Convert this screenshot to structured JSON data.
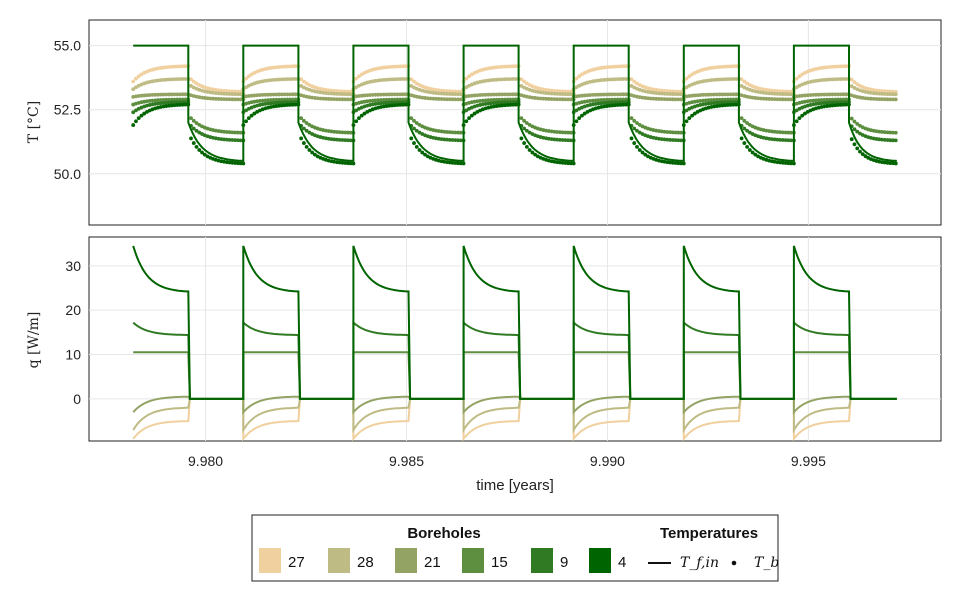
{
  "chart_data": [
    {
      "type": "line",
      "panel": "temperature",
      "ylabel": "T [°C]",
      "xlim": [
        9.9771,
        9.9983
      ],
      "ylim": [
        48.0,
        56.0
      ],
      "xticks": [
        9.98,
        9.985,
        9.99,
        9.995
      ],
      "yticks": [
        {
          "value": 50.0,
          "label": "50.0"
        },
        {
          "value": 52.5,
          "label": "52.5"
        },
        {
          "value": 55.0,
          "label": "55.0"
        }
      ],
      "grid": true,
      "cycles": {
        "first_start": 9.9782,
        "period": 0.00274,
        "on_duration": 0.00137,
        "count": 7,
        "end": 9.9972
      },
      "series_fin": {
        "name": "T_f,in",
        "on_value": 55.0,
        "off_start": 52.0,
        "off_end": 50.5
      },
      "series_tb": [
        {
          "name": "27",
          "on_start": 53.6,
          "on_end": 54.2,
          "off_start": 53.8,
          "off_end": 53.2
        },
        {
          "name": "28",
          "on_start": 53.3,
          "on_end": 53.7,
          "off_start": 53.5,
          "off_end": 53.1
        },
        {
          "name": "21",
          "on_start": 53.0,
          "on_end": 53.1,
          "off_start": 53.1,
          "off_end": 52.9
        },
        {
          "name": "15",
          "on_start": 52.7,
          "on_end": 52.9,
          "off_start": 52.3,
          "off_end": 51.6
        },
        {
          "name": "9",
          "on_start": 52.4,
          "on_end": 52.8,
          "off_start": 52.0,
          "off_end": 51.3
        },
        {
          "name": "4",
          "on_start": 51.9,
          "on_end": 52.7,
          "off_start": 51.6,
          "off_end": 50.4
        }
      ]
    },
    {
      "type": "line",
      "panel": "heat_flux",
      "ylabel": "q [W/m]",
      "xlabel": "time [years]",
      "xlim": [
        9.9771,
        9.9983
      ],
      "ylim": [
        -9.5,
        36.5
      ],
      "xticks": [
        9.98,
        9.985,
        9.99,
        9.995
      ],
      "xticklabels": [
        "9.980",
        "9.985",
        "9.990",
        "9.995"
      ],
      "yticks": [
        {
          "value": 0,
          "label": "0"
        },
        {
          "value": 10,
          "label": "10"
        },
        {
          "value": 20,
          "label": "20"
        },
        {
          "value": 30,
          "label": "30"
        }
      ],
      "grid": true,
      "series": [
        {
          "name": "27",
          "on_start": -9.0,
          "on_end": -5.0
        },
        {
          "name": "28",
          "on_start": -7.0,
          "on_end": -2.0
        },
        {
          "name": "21",
          "on_start": -3.0,
          "on_end": 0.5
        },
        {
          "name": "15",
          "on_start": 10.5,
          "on_end": 10.5
        },
        {
          "name": "9",
          "on_start": 17.2,
          "on_end": 14.4
        },
        {
          "name": "4",
          "on_start": 34.5,
          "on_end": 24.2
        }
      ]
    }
  ],
  "legend": {
    "placement": "bottom-center",
    "boreholes_title": "Boreholes",
    "temperatures_title": "Temperatures",
    "boreholes": [
      {
        "label": "27",
        "color": "#f0d09e"
      },
      {
        "label": "28",
        "color": "#bfbb84"
      },
      {
        "label": "21",
        "color": "#93a363"
      },
      {
        "label": "15",
        "color": "#5e8f41"
      },
      {
        "label": "9",
        "color": "#2f7a22"
      },
      {
        "label": "4",
        "color": "#006400"
      }
    ],
    "temperatures": [
      {
        "label": "T_f,in",
        "marker": "line"
      },
      {
        "label": "T_b",
        "marker": "dot"
      }
    ]
  }
}
